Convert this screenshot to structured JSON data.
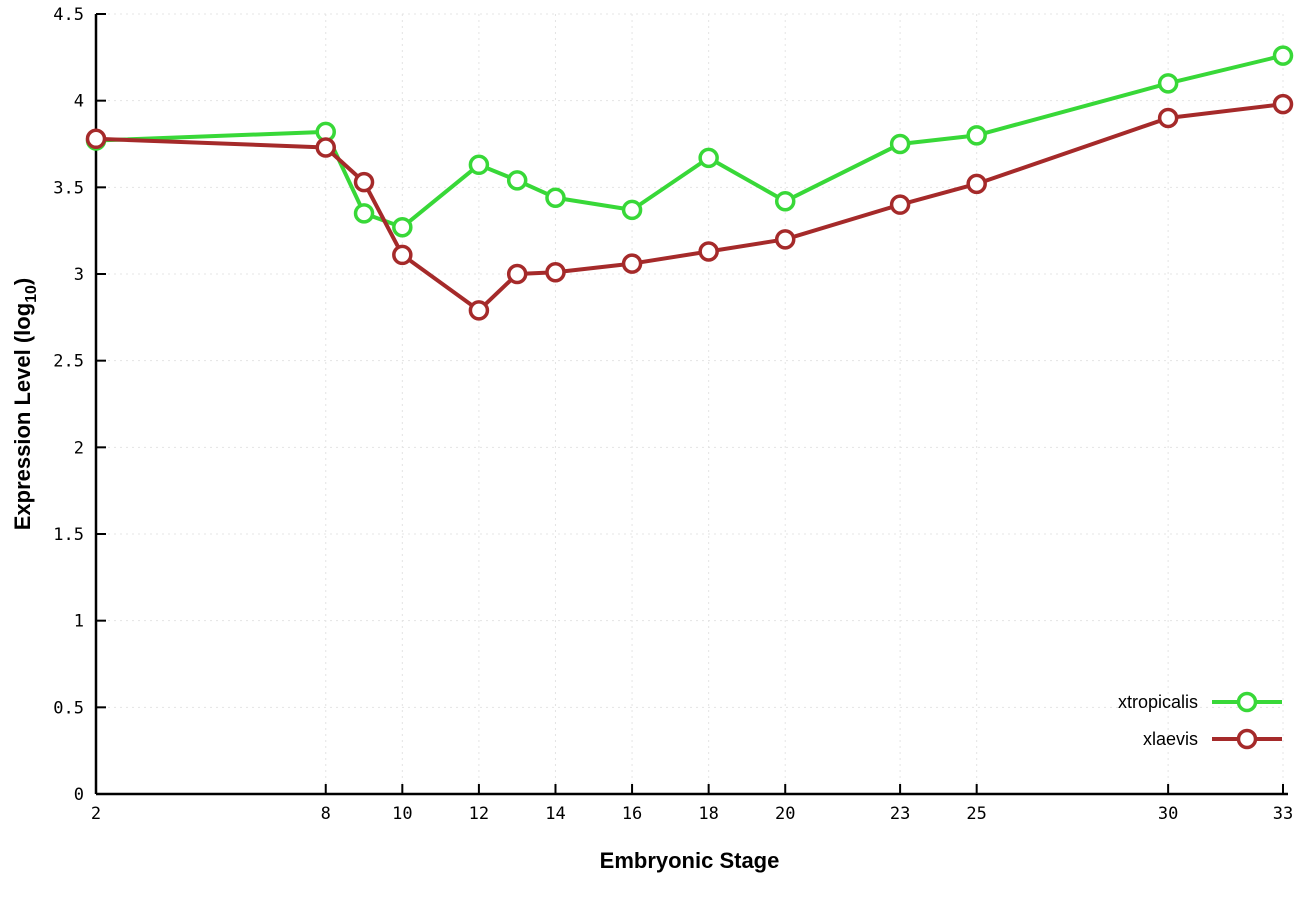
{
  "figure": {
    "background": "#ffffff",
    "axis_color": "#000000",
    "grid_color": "#e4e4e4"
  },
  "chart_data": {
    "type": "line",
    "title": "",
    "xlabel": "Embryonic Stage",
    "ylabel": {
      "pre": "Expression Level (log",
      "sub": "10",
      "post": ")"
    },
    "x": [
      2,
      8,
      9,
      10,
      12,
      13,
      14,
      16,
      18,
      20,
      23,
      25,
      30,
      33
    ],
    "xticks": [
      2,
      8,
      10,
      12,
      14,
      16,
      18,
      20,
      23,
      25,
      30,
      33
    ],
    "yticks": [
      0,
      0.5,
      1,
      1.5,
      2,
      2.5,
      3,
      3.5,
      4,
      4.5
    ],
    "xlim": [
      2,
      33
    ],
    "ylim": [
      0,
      4.5
    ],
    "grid": true,
    "legend_position": "bottom-right",
    "series": [
      {
        "name": "xtropicalis",
        "color": "#38d838",
        "values": [
          3.77,
          3.82,
          3.35,
          3.27,
          3.63,
          3.54,
          3.44,
          3.37,
          3.67,
          3.42,
          3.75,
          3.8,
          4.1,
          4.26
        ]
      },
      {
        "name": "xlaevis",
        "color": "#a52a2a",
        "values": [
          3.78,
          3.73,
          3.53,
          3.11,
          2.79,
          3.0,
          3.01,
          3.06,
          3.13,
          3.2,
          3.4,
          3.52,
          3.9,
          3.98
        ]
      }
    ]
  }
}
